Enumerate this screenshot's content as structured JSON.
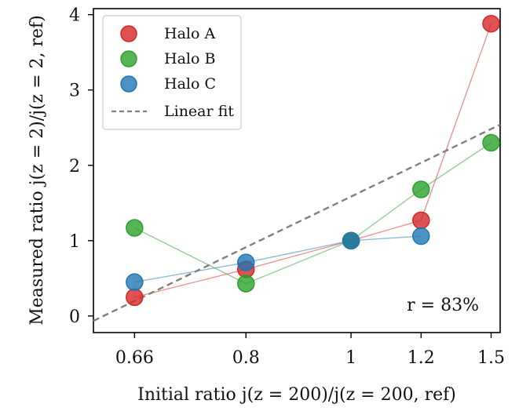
{
  "chart_data": {
    "type": "line",
    "title": "",
    "xlabel": "Initial ratio j(z = 200)/j(z = 200, ref)",
    "ylabel": "Measured ratio j(z = 2)/j(z = 2, ref)",
    "x_scale": "reciprocal",
    "x_ticks": [
      0.66,
      0.8,
      1,
      1.2,
      1.5
    ],
    "x_tick_labels": [
      "0.66",
      "0.8",
      "1",
      "1.2",
      "1.5"
    ],
    "xlim": [
      0.62,
      1.55
    ],
    "y_ticks": [
      0,
      1,
      2,
      3,
      4
    ],
    "y_tick_labels": [
      "0",
      "1",
      "2",
      "3",
      "4"
    ],
    "ylim": [
      -0.22,
      4.08
    ],
    "grid": false,
    "legend_position": "top-left",
    "series": [
      {
        "name": "Halo A",
        "color": "#d62728",
        "x": [
          0.66,
          0.8,
          1,
          1.2,
          1.5
        ],
        "y": [
          0.25,
          0.62,
          1.0,
          1.27,
          3.88
        ]
      },
      {
        "name": "Halo B",
        "color": "#2ca02c",
        "x": [
          0.66,
          0.8,
          1,
          1.2,
          1.5
        ],
        "y": [
          1.17,
          0.43,
          1.0,
          1.68,
          2.3
        ]
      },
      {
        "name": "Halo C",
        "color": "#1f77b4",
        "x": [
          0.66,
          0.8,
          1,
          1.2
        ],
        "y": [
          0.45,
          0.71,
          1.0,
          1.06
        ]
      }
    ],
    "fit_line": {
      "name": "Linear fit",
      "color": "#7f7f7f",
      "style": "dashed",
      "slope": 2.8,
      "intercept": -1.8
    },
    "annotation": "r = 83%"
  }
}
